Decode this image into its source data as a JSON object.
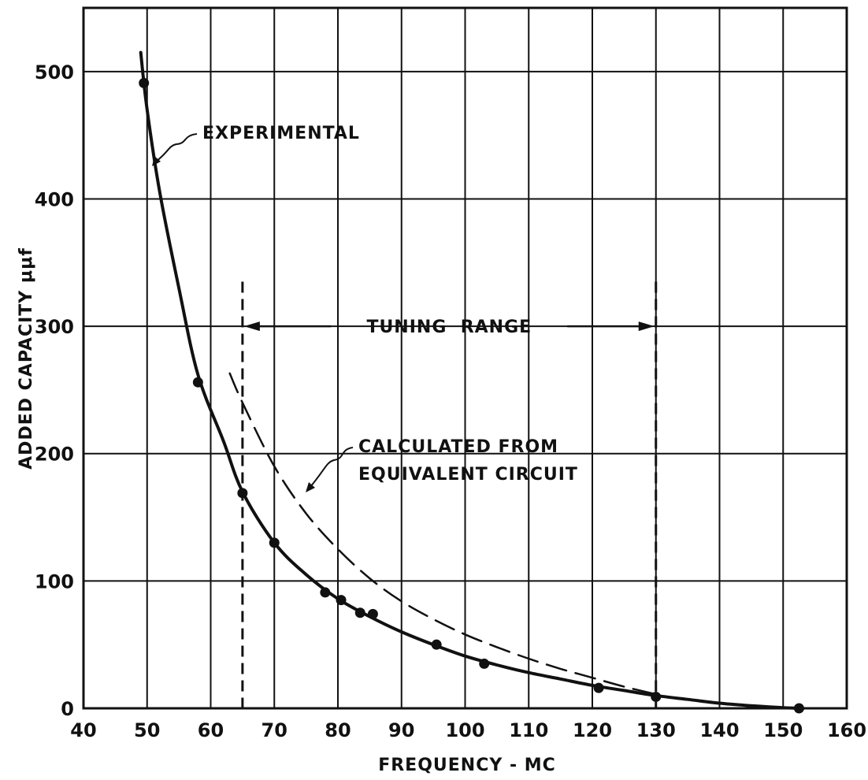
{
  "chart_data": {
    "type": "line",
    "xlabel": "FREQUENCY - MC",
    "ylabel": "ADDED CAPACITY μμf",
    "xlim": [
      40,
      160
    ],
    "ylim": [
      0,
      550
    ],
    "x_ticks": [
      40,
      50,
      60,
      70,
      80,
      90,
      100,
      110,
      120,
      130,
      140,
      150,
      160
    ],
    "y_ticks": [
      0,
      100,
      200,
      300,
      400,
      500
    ],
    "grid": true,
    "series": [
      {
        "name": "EXPERIMENTAL",
        "style": "solid",
        "curve": [
          [
            49,
            515
          ],
          [
            50,
            470
          ],
          [
            52,
            405
          ],
          [
            55,
            330
          ],
          [
            58,
            262
          ],
          [
            62,
            210
          ],
          [
            65,
            170
          ],
          [
            70,
            130
          ],
          [
            75,
            105
          ],
          [
            80,
            86
          ],
          [
            85,
            72
          ],
          [
            90,
            60
          ],
          [
            95,
            50
          ],
          [
            100,
            41
          ],
          [
            105,
            34
          ],
          [
            110,
            28
          ],
          [
            115,
            23
          ],
          [
            120,
            18
          ],
          [
            125,
            14
          ],
          [
            130,
            10
          ],
          [
            135,
            7
          ],
          [
            140,
            4
          ],
          [
            145,
            2
          ],
          [
            150,
            0.5
          ],
          [
            153,
            0
          ]
        ],
        "points": [
          [
            49.5,
            491
          ],
          [
            58,
            256
          ],
          [
            65,
            169
          ],
          [
            70,
            130
          ],
          [
            78,
            91
          ],
          [
            80.5,
            85
          ],
          [
            83.5,
            75
          ],
          [
            85.5,
            74
          ],
          [
            95.5,
            50
          ],
          [
            103,
            35
          ],
          [
            121,
            16
          ],
          [
            130,
            9
          ],
          [
            152.5,
            0
          ]
        ]
      },
      {
        "name": "CALCULATED FROM EQUIVALENT CIRCUIT",
        "style": "dashed",
        "curve": [
          [
            63,
            263
          ],
          [
            65,
            240
          ],
          [
            70,
            190
          ],
          [
            75,
            153
          ],
          [
            80,
            125
          ],
          [
            85,
            102
          ],
          [
            90,
            84
          ],
          [
            95,
            70
          ],
          [
            100,
            58
          ],
          [
            105,
            48
          ],
          [
            110,
            39
          ],
          [
            115,
            31
          ],
          [
            120,
            24
          ],
          [
            125,
            17
          ],
          [
            130,
            11
          ]
        ]
      }
    ],
    "annotations": {
      "experimental_label": "EXPERIMENTAL",
      "calculated_label_line1": "CALCULATED FROM",
      "calculated_label_line2": "EQUIVALENT CIRCUIT",
      "tuning_range_label": "TUNING  RANGE",
      "tuning_range_x": [
        65,
        130
      ],
      "tuning_range_y": 300,
      "tuning_range_top": 335
    }
  }
}
